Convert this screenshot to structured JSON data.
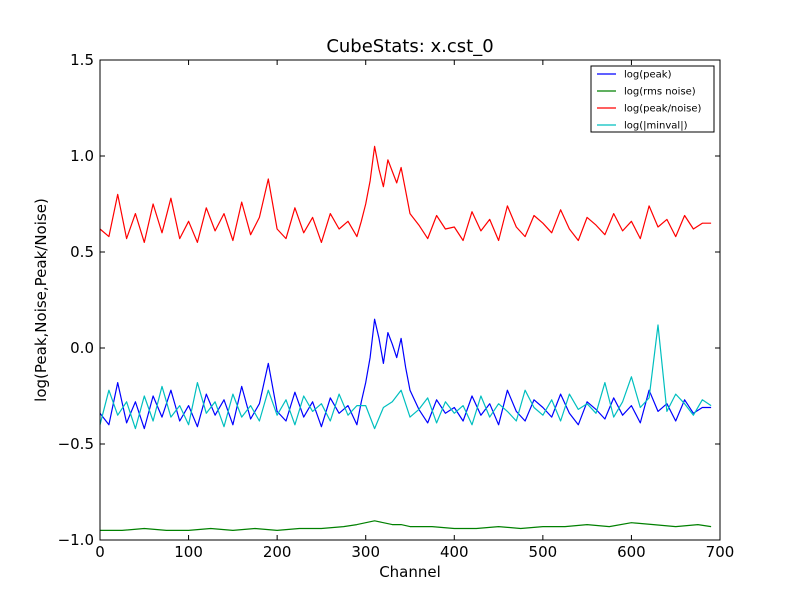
{
  "chart_data": {
    "type": "line",
    "title": "CubeStats: x.cst_0",
    "xlabel": "Channel",
    "ylabel": "log(Peak,Noise,Peak/Noise)",
    "xlim": [
      0,
      700
    ],
    "ylim": [
      -1.0,
      1.5
    ],
    "xticks": [
      0,
      100,
      200,
      300,
      400,
      500,
      600,
      700
    ],
    "yticks": [
      -1.0,
      -0.5,
      0.0,
      0.5,
      1.0,
      1.5
    ],
    "xtick_labels": [
      "0",
      "100",
      "200",
      "300",
      "400",
      "500",
      "600",
      "700"
    ],
    "ytick_labels": [
      "−1.0",
      "−0.5",
      "0.0",
      "0.5",
      "1.0",
      "1.5"
    ],
    "grid": false,
    "legend_position": "top-right",
    "series": [
      {
        "name": "log(peak)",
        "color": "#0000ff",
        "x": [
          0,
          10,
          20,
          30,
          40,
          50,
          60,
          70,
          80,
          90,
          100,
          110,
          120,
          130,
          140,
          150,
          160,
          170,
          180,
          190,
          200,
          210,
          220,
          230,
          240,
          250,
          260,
          270,
          280,
          290,
          295,
          300,
          305,
          310,
          315,
          320,
          325,
          330,
          335,
          340,
          345,
          350,
          360,
          370,
          380,
          390,
          400,
          410,
          420,
          430,
          440,
          450,
          460,
          470,
          480,
          490,
          500,
          510,
          520,
          530,
          540,
          550,
          560,
          570,
          580,
          590,
          600,
          610,
          620,
          630,
          640,
          650,
          660,
          670,
          680,
          690
        ],
        "y": [
          -0.34,
          -0.4,
          -0.18,
          -0.39,
          -0.28,
          -0.42,
          -0.25,
          -0.36,
          -0.22,
          -0.38,
          -0.3,
          -0.41,
          -0.24,
          -0.35,
          -0.27,
          -0.4,
          -0.2,
          -0.37,
          -0.29,
          -0.08,
          -0.33,
          -0.38,
          -0.23,
          -0.36,
          -0.28,
          -0.41,
          -0.26,
          -0.34,
          -0.3,
          -0.4,
          -0.28,
          -0.18,
          -0.05,
          0.15,
          0.05,
          -0.08,
          0.08,
          0.02,
          -0.05,
          0.05,
          -0.1,
          -0.22,
          -0.32,
          -0.39,
          -0.27,
          -0.34,
          -0.31,
          -0.38,
          -0.25,
          -0.35,
          -0.29,
          -0.4,
          -0.22,
          -0.33,
          -0.38,
          -0.27,
          -0.31,
          -0.36,
          -0.24,
          -0.34,
          -0.4,
          -0.28,
          -0.32,
          -0.37,
          -0.26,
          -0.35,
          -0.3,
          -0.39,
          -0.22,
          -0.33,
          -0.29,
          -0.38,
          -0.27,
          -0.34,
          -0.31,
          -0.31
        ]
      },
      {
        "name": "log(rms noise)",
        "color": "#008000",
        "x": [
          0,
          25,
          50,
          75,
          100,
          125,
          150,
          175,
          200,
          225,
          250,
          275,
          290,
          300,
          310,
          320,
          330,
          340,
          350,
          375,
          400,
          425,
          450,
          475,
          500,
          525,
          550,
          575,
          600,
          625,
          650,
          675,
          690
        ],
        "y": [
          -0.95,
          -0.95,
          -0.94,
          -0.95,
          -0.95,
          -0.94,
          -0.95,
          -0.94,
          -0.95,
          -0.94,
          -0.94,
          -0.93,
          -0.92,
          -0.91,
          -0.9,
          -0.91,
          -0.92,
          -0.92,
          -0.93,
          -0.93,
          -0.94,
          -0.94,
          -0.93,
          -0.94,
          -0.93,
          -0.93,
          -0.92,
          -0.93,
          -0.91,
          -0.92,
          -0.93,
          -0.92,
          -0.93
        ]
      },
      {
        "name": "log(peak/noise)",
        "color": "#ff0000",
        "x": [
          0,
          10,
          20,
          30,
          40,
          50,
          60,
          70,
          80,
          90,
          100,
          110,
          120,
          130,
          140,
          150,
          160,
          170,
          180,
          190,
          200,
          210,
          220,
          230,
          240,
          250,
          260,
          270,
          280,
          290,
          295,
          300,
          305,
          310,
          315,
          320,
          325,
          330,
          335,
          340,
          345,
          350,
          360,
          370,
          380,
          390,
          400,
          410,
          420,
          430,
          440,
          450,
          460,
          470,
          480,
          490,
          500,
          510,
          520,
          530,
          540,
          550,
          560,
          570,
          580,
          590,
          600,
          610,
          620,
          630,
          640,
          650,
          660,
          670,
          680,
          690
        ],
        "y": [
          0.62,
          0.58,
          0.8,
          0.57,
          0.7,
          0.55,
          0.75,
          0.6,
          0.78,
          0.57,
          0.66,
          0.55,
          0.73,
          0.61,
          0.7,
          0.56,
          0.76,
          0.59,
          0.68,
          0.88,
          0.62,
          0.57,
          0.73,
          0.6,
          0.68,
          0.55,
          0.7,
          0.62,
          0.66,
          0.58,
          0.66,
          0.75,
          0.87,
          1.05,
          0.93,
          0.84,
          0.98,
          0.92,
          0.86,
          0.94,
          0.82,
          0.7,
          0.64,
          0.57,
          0.69,
          0.62,
          0.63,
          0.56,
          0.71,
          0.61,
          0.67,
          0.56,
          0.74,
          0.63,
          0.58,
          0.69,
          0.65,
          0.6,
          0.72,
          0.62,
          0.56,
          0.68,
          0.64,
          0.59,
          0.7,
          0.61,
          0.66,
          0.57,
          0.74,
          0.63,
          0.67,
          0.58,
          0.69,
          0.62,
          0.65,
          0.65
        ]
      },
      {
        "name": "log(|minval|)",
        "color": "#00bfbf",
        "x": [
          0,
          10,
          20,
          30,
          40,
          50,
          60,
          70,
          80,
          90,
          100,
          110,
          120,
          130,
          140,
          150,
          160,
          170,
          180,
          190,
          200,
          210,
          220,
          230,
          240,
          250,
          260,
          270,
          280,
          290,
          300,
          310,
          320,
          330,
          340,
          350,
          360,
          370,
          380,
          390,
          400,
          410,
          420,
          430,
          440,
          450,
          460,
          470,
          480,
          490,
          500,
          510,
          520,
          530,
          540,
          550,
          560,
          570,
          580,
          590,
          600,
          610,
          620,
          630,
          640,
          650,
          660,
          670,
          680,
          690
        ],
        "y": [
          -0.4,
          -0.22,
          -0.35,
          -0.28,
          -0.42,
          -0.25,
          -0.38,
          -0.2,
          -0.36,
          -0.3,
          -0.4,
          -0.18,
          -0.34,
          -0.28,
          -0.41,
          -0.24,
          -0.36,
          -0.3,
          -0.38,
          -0.22,
          -0.35,
          -0.27,
          -0.4,
          -0.25,
          -0.33,
          -0.29,
          -0.38,
          -0.24,
          -0.35,
          -0.3,
          -0.3,
          -0.42,
          -0.31,
          -0.28,
          -0.22,
          -0.36,
          -0.32,
          -0.26,
          -0.39,
          -0.28,
          -0.34,
          -0.3,
          -0.4,
          -0.25,
          -0.36,
          -0.29,
          -0.33,
          -0.38,
          -0.22,
          -0.31,
          -0.35,
          -0.27,
          -0.38,
          -0.24,
          -0.32,
          -0.29,
          -0.34,
          -0.18,
          -0.36,
          -0.28,
          -0.15,
          -0.31,
          -0.26,
          0.12,
          -0.33,
          -0.24,
          -0.29,
          -0.35,
          -0.27,
          -0.3
        ]
      }
    ]
  }
}
